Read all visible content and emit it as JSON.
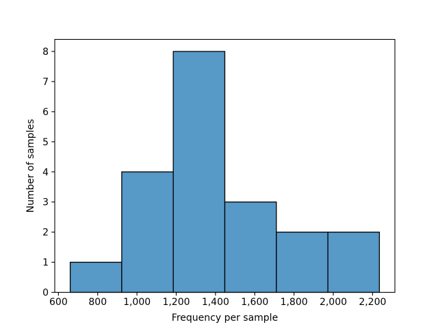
{
  "chart_data": {
    "type": "bar",
    "subtype": "histogram",
    "title": "",
    "xlabel": "Frequency per sample",
    "ylabel": "Number of samples",
    "bin_edges": [
      660,
      922.5,
      1185,
      1447.5,
      1710,
      1972.5,
      2235
    ],
    "counts": [
      1,
      4,
      8,
      3,
      2,
      2
    ],
    "xlim": [
      581.25,
      2313.75
    ],
    "ylim": [
      0,
      8.4
    ],
    "xticks": [
      600,
      800,
      1000,
      1200,
      1400,
      1600,
      1800,
      2000,
      2200
    ],
    "xtick_labels": [
      "600",
      "800",
      "1,000",
      "1,200",
      "1,400",
      "1,600",
      "1,800",
      "2,000",
      "2,200"
    ],
    "yticks": [
      0,
      1,
      2,
      3,
      4,
      5,
      6,
      7,
      8
    ],
    "ytick_labels": [
      "0",
      "1",
      "2",
      "3",
      "4",
      "5",
      "6",
      "7",
      "8"
    ],
    "grid": false,
    "legend": false,
    "colors": {
      "bar_fill": "#5799c7",
      "bar_edge": "#000000",
      "axis": "#000000",
      "text": "#000000",
      "background": "#ffffff"
    }
  }
}
